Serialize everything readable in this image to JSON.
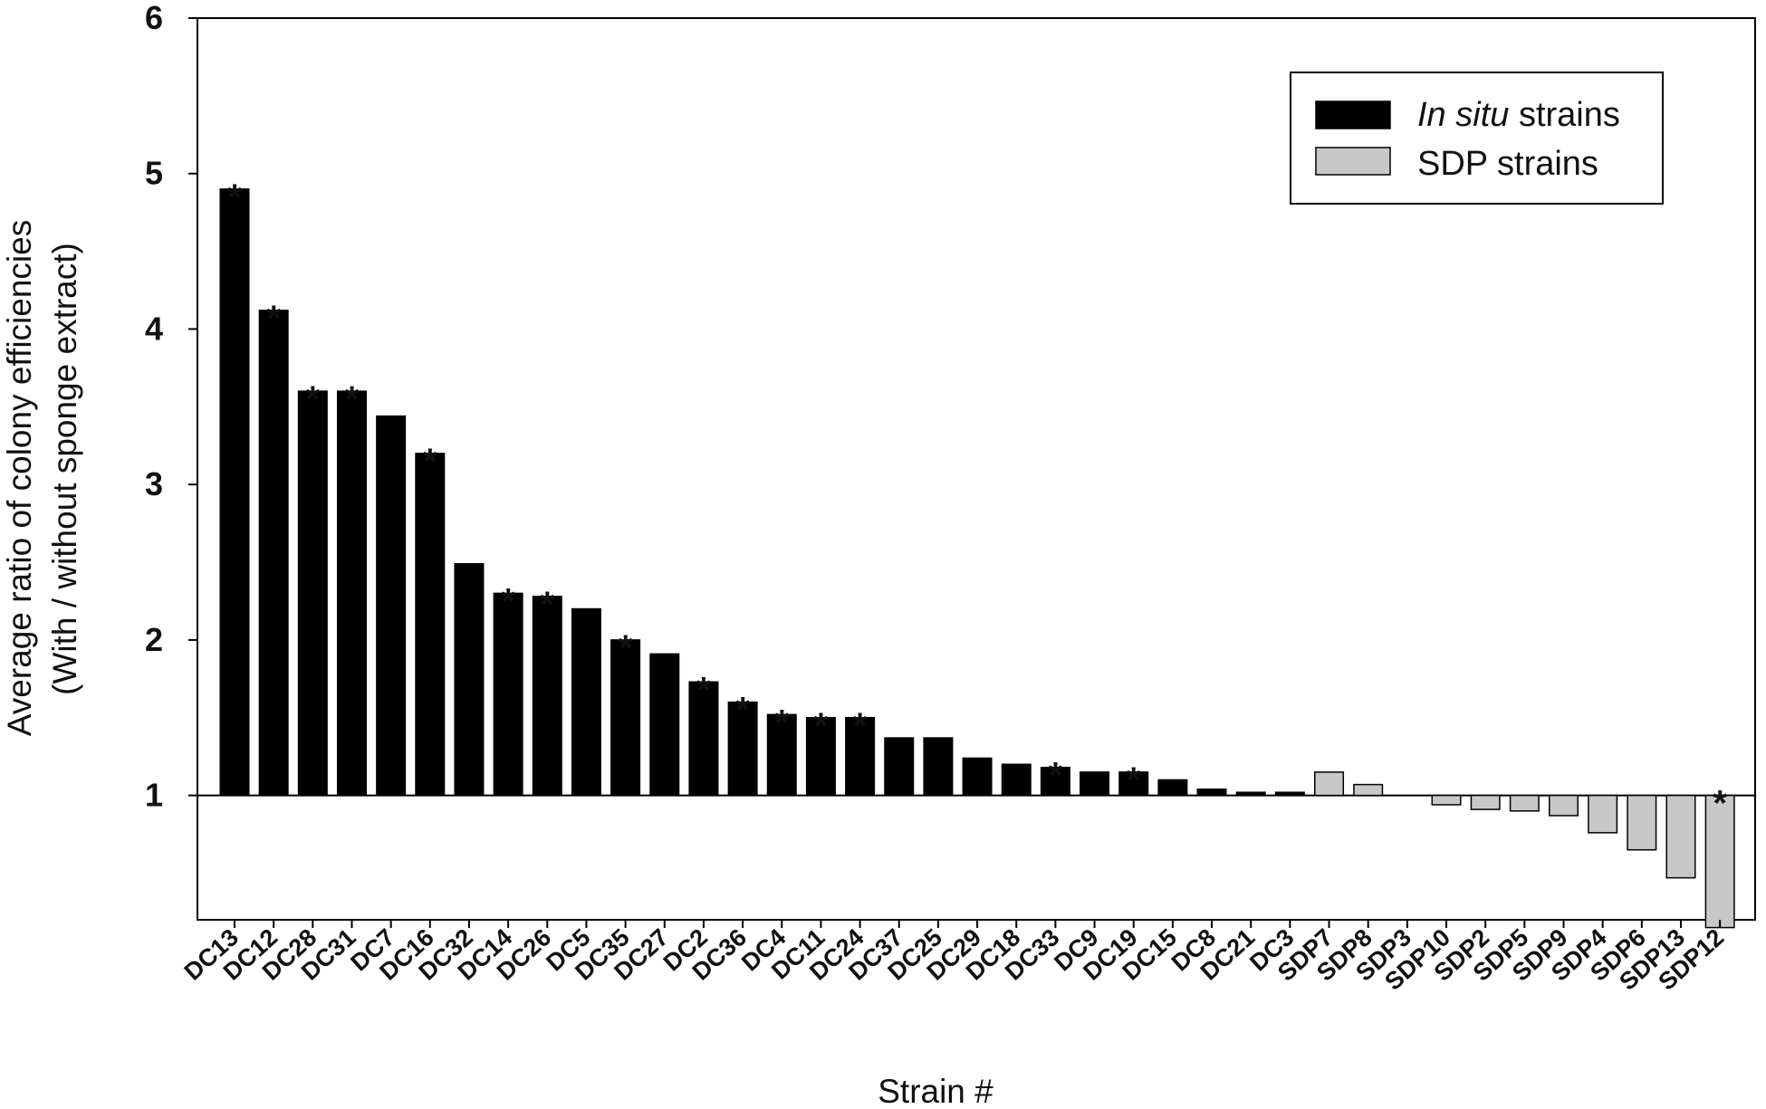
{
  "chart_data": {
    "type": "bar",
    "xlabel": "Strain #",
    "ylabel": "Average ratio of colony efficiencies",
    "ylabel2": "(With / without sponge extract)",
    "ylim": [
      0.2,
      6
    ],
    "baseline": 1,
    "yticks": [
      1,
      2,
      3,
      4,
      5,
      6
    ],
    "grid": false,
    "legend_position": "top-right",
    "significance_marker": "*",
    "legend": [
      {
        "prefix": "In situ",
        "suffix": " strains",
        "color": "#000000"
      },
      {
        "prefix": "",
        "suffix": "SDP strains",
        "color": "#c8c8c8"
      }
    ],
    "categories": [
      "DC13",
      "DC12",
      "DC28",
      "DC31",
      "DC7",
      "DC16",
      "DC32",
      "DC14",
      "DC26",
      "DC5",
      "DC35",
      "DC27",
      "DC2",
      "DC36",
      "DC4",
      "DC11",
      "DC24",
      "DC37",
      "DC25",
      "DC29",
      "DC18",
      "DC33",
      "DC9",
      "DC19",
      "DC15",
      "DC8",
      "DC21",
      "DC3",
      "SDP7",
      "SDP8",
      "SDP3",
      "SDP10",
      "SDP2",
      "SDP5",
      "SDP9",
      "SDP4",
      "SDP6",
      "SDP13",
      "SDP12"
    ],
    "values": [
      4.9,
      4.12,
      3.6,
      3.6,
      3.44,
      3.2,
      2.49,
      2.3,
      2.28,
      2.2,
      2.0,
      1.91,
      1.73,
      1.6,
      1.52,
      1.5,
      1.5,
      1.37,
      1.37,
      1.24,
      1.2,
      1.18,
      1.15,
      1.15,
      1.1,
      1.04,
      1.02,
      1.02,
      1.15,
      1.07,
      1.0,
      0.94,
      0.91,
      0.9,
      0.87,
      0.76,
      0.65,
      0.47,
      0.15
    ],
    "group": [
      "in_situ",
      "in_situ",
      "in_situ",
      "in_situ",
      "in_situ",
      "in_situ",
      "in_situ",
      "in_situ",
      "in_situ",
      "in_situ",
      "in_situ",
      "in_situ",
      "in_situ",
      "in_situ",
      "in_situ",
      "in_situ",
      "in_situ",
      "in_situ",
      "in_situ",
      "in_situ",
      "in_situ",
      "in_situ",
      "in_situ",
      "in_situ",
      "in_situ",
      "in_situ",
      "in_situ",
      "in_situ",
      "sdp",
      "sdp",
      "sdp",
      "sdp",
      "sdp",
      "sdp",
      "sdp",
      "sdp",
      "sdp",
      "sdp",
      "sdp"
    ],
    "significant": [
      true,
      true,
      true,
      true,
      false,
      true,
      false,
      true,
      true,
      false,
      true,
      false,
      true,
      true,
      true,
      true,
      true,
      false,
      false,
      false,
      false,
      true,
      false,
      true,
      false,
      false,
      false,
      false,
      false,
      false,
      false,
      false,
      false,
      false,
      false,
      false,
      false,
      false,
      true
    ]
  }
}
